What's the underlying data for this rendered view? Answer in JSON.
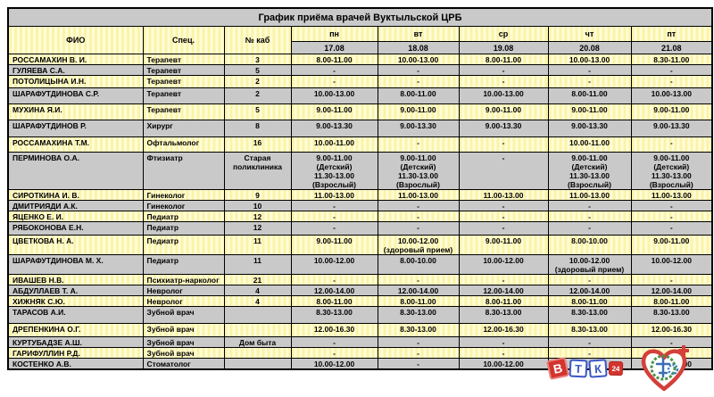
{
  "title": "График приёма врачей Вуктыльской ЦРБ",
  "table": {
    "columns": [
      "ФИО",
      "Спец.",
      "№ каб",
      "пн",
      "вт",
      "ср",
      "чт",
      "пт"
    ],
    "dates": [
      "17.08",
      "18.08",
      "19.08",
      "20.08",
      "21.08"
    ],
    "rows": [
      {
        "fio": "РОССАМАХИН В. И.",
        "spec": "Терапевт",
        "cab": "3",
        "days": [
          "8.00-11.00",
          "10.00-13.00",
          "8.00-11.00",
          "10.00-13.00",
          "8.30-11.00"
        ]
      },
      {
        "fio": "ГУЛЯЕВА С.А.",
        "spec": "Терапевт",
        "cab": "5",
        "days": [
          "-",
          "-",
          "-",
          "-",
          "-"
        ]
      },
      {
        "fio": "ПОТОЛИЦЫНА И.Н.",
        "spec": "Терапевт",
        "cab": "2",
        "days": [
          "-",
          "-",
          "-",
          "-",
          "-"
        ]
      },
      {
        "fio": "ШАРАФУТДИНОВА С.Р.",
        "spec": "Терапевт",
        "cab": "2",
        "days": [
          "10.00-13.00",
          "8.00-11.00",
          "10.00-13.00",
          "8.00-11.00",
          "10.00-13.00"
        ]
      },
      {
        "fio": "МУХИНА Я.И.",
        "spec": "Терапевт",
        "cab": "5",
        "days": [
          "9.00-11.00",
          "9.00-11.00",
          "9.00-11.00",
          "9.00-11.00",
          "9.00-11.00"
        ]
      },
      {
        "fio": "ШАРАФУТДИНОВ Р.",
        "spec": "Хирург",
        "cab": "8",
        "days": [
          "9.00-13.30",
          "9.00-13.30",
          "9.00-13.30",
          "9.00-13.30",
          "9.00-13.30"
        ]
      },
      {
        "fio": "РОССАМАХИНА Т.М.",
        "spec": "Офтальмолог",
        "cab": "16",
        "days": [
          "10.00-11.00",
          "-",
          "-",
          "10.00-11.00",
          "-"
        ]
      },
      {
        "fio": "ПЕРМИНОВА О.А.",
        "spec": "Фтизиатр",
        "cab": "Старая поликлиника",
        "days": [
          "9.00-11.00\n(Детский)\n11.30-13.00\n(Взрослый)",
          "9.00-11.00\n(Детский)\n11.30-13.00\n(Взрослый)",
          "-",
          "9.00-11.00\n(Детский)\n11.30-13.00\n(Взрослый)",
          "9.00-11.00\n(Детский)\n11.30-13.00\n(Взрослый)"
        ]
      },
      {
        "fio": "СИРОТКИНА И. В.",
        "spec": "Гинеколог",
        "cab": "9",
        "days": [
          "11.00-13.00",
          "11.00-13.00",
          "11.00-13.00",
          "11.00-13.00",
          "11.00-13.00"
        ]
      },
      {
        "fio": "ДМИТРИЯДИ А.К.",
        "spec": "Гинеколог",
        "cab": "10",
        "days": [
          "-",
          "-",
          "-",
          "-",
          "-"
        ]
      },
      {
        "fio": "ЯЦЕНКО Е. И.",
        "spec": "Педиатр",
        "cab": "12",
        "days": [
          "-",
          "-",
          "-",
          "-",
          "-"
        ]
      },
      {
        "fio": "РЯБОКОНОВА Е.Н.",
        "spec": "Педиатр",
        "cab": "12",
        "days": [
          "-",
          "-",
          "-",
          "-",
          "-"
        ]
      },
      {
        "fio": "ЦВЕТКОВА Н. А.",
        "spec": "Педиатр",
        "cab": "11",
        "days": [
          "9.00-11.00",
          "10.00-12.00\n(здоровый прием)",
          "9.00-11.00",
          "8.00-10.00",
          "9.00-11.00"
        ]
      },
      {
        "fio": "ШАРАФУТДИНОВА М. Х.",
        "spec": "Педиатр",
        "cab": "11",
        "days": [
          "10.00-12.00",
          "8.00-10.00",
          "10.00-12.00",
          "10.00-12.00\n(здоровый прием)",
          "10.00-12.00"
        ]
      },
      {
        "fio": "ИВАШЕВ Н.В.",
        "spec": "Психиатр-нарколог",
        "cab": "21",
        "days": [
          "-",
          "-",
          "-",
          "-",
          "-"
        ]
      },
      {
        "fio": "АБДУЛЛАЕВ Т. А.",
        "spec": "Невролог",
        "cab": "4",
        "days": [
          "12.00-14.00",
          "12.00-14.00",
          "12.00-14.00",
          "12.00-14.00",
          "12.00-14.00"
        ]
      },
      {
        "fio": "ХИЖНЯК С.Ю.",
        "spec": "Невролог",
        "cab": "4",
        "days": [
          "8.00-11.00",
          "8.00-11.00",
          "8.00-11.00",
          "8.00-11.00",
          "8.00-11.00"
        ]
      },
      {
        "fio": "ТАРАСОВ А.И.",
        "spec": "Зубной врач",
        "cab": "",
        "days": [
          "8.30-13.00",
          "8.30-13.00",
          "8.30-13.00",
          "8.30-13.00",
          "8.30-13.00"
        ]
      },
      {
        "fio": "ДРЕПЕНКИНА О.Г.",
        "spec": "Зубной врач",
        "cab": "",
        "days": [
          "12.00-16.30",
          "8.30-13.00",
          "12.00-16.30",
          "8.30-13.00",
          "12.00-16.30"
        ]
      },
      {
        "fio": "КУРТУБАДЗЕ А.Ш.",
        "spec": "Зубной врач",
        "cab": "Дом быта",
        "days": [
          "-",
          "-",
          "-",
          "-",
          "-"
        ]
      },
      {
        "fio": "ГАРИФУЛЛИН Р.Д.",
        "spec": "Зубной врач",
        "cab": "",
        "days": [
          "-",
          "-",
          "-",
          "-",
          "-"
        ]
      },
      {
        "fio": "КОСТЕНКО А.В.",
        "spec": "Стоматолог",
        "cab": "",
        "days": [
          "10.00-12.00",
          "-",
          "10.00-12.00",
          "-",
          "10.00-12.00"
        ]
      }
    ]
  },
  "logos": {
    "vtk_tiles": [
      "В",
      "Т",
      "К",
      "24"
    ]
  },
  "colors": {
    "row_yellow": "#fbf3a9",
    "row_gray": "#c9c9c9",
    "logo_red": "#d3342e",
    "logo_blue": "#3a57c4",
    "logo_green": "#4a9148"
  }
}
